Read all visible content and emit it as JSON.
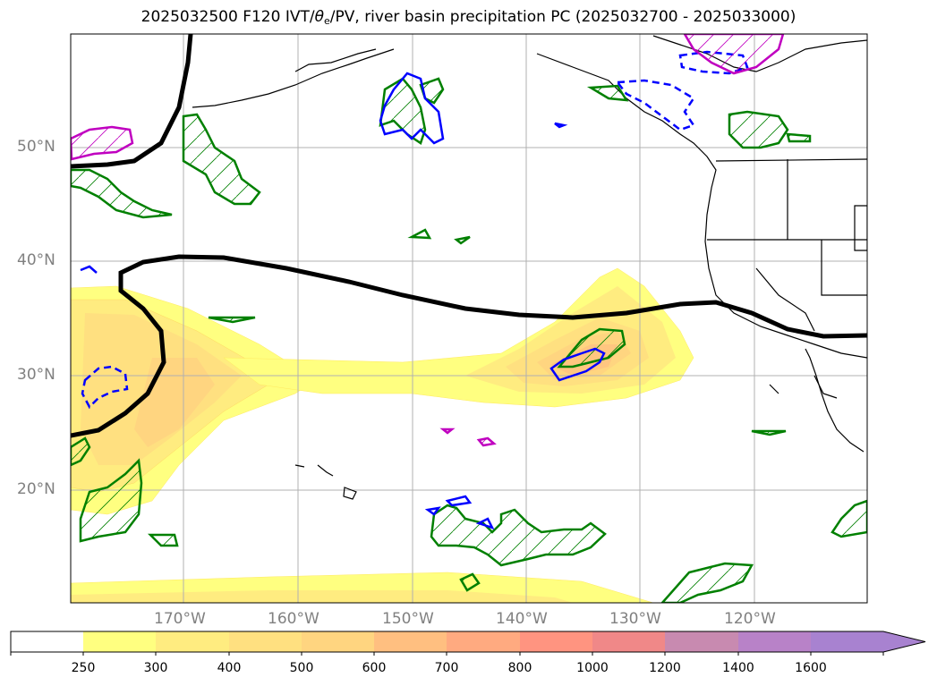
{
  "title": {
    "prefix": "2025032500 F120 IVT/",
    "theta": "θ",
    "theta_sub": "e",
    "suffix": "/PV, river basin precipitation PC (2025032700 - 2025033000)"
  },
  "lat_labels": [
    "50°N",
    "40°N",
    "30°N",
    "20°N"
  ],
  "lon_labels": [
    "170°W",
    "160°W",
    "150°W",
    "140°W",
    "130°W",
    "120°W"
  ],
  "colorbar": {
    "ticks": [
      "250",
      "300",
      "400",
      "500",
      "600",
      "700",
      "800",
      "1000",
      "1200",
      "1400",
      "1600"
    ],
    "colors": [
      "#ffffff",
      "#ffff80",
      "#ffec80",
      "#ffe080",
      "#ffd580",
      "#ffbf80",
      "#ffaa80",
      "#ff9480",
      "#f08888",
      "#c88ab0",
      "#b882c8",
      "#a882d0"
    ]
  },
  "colors": {
    "contour_pv": "#000000",
    "precip_green": "#008000",
    "precip_blue": "#0000ff",
    "precip_magenta": "#c000c0",
    "grid": "#b0b0b0"
  }
}
